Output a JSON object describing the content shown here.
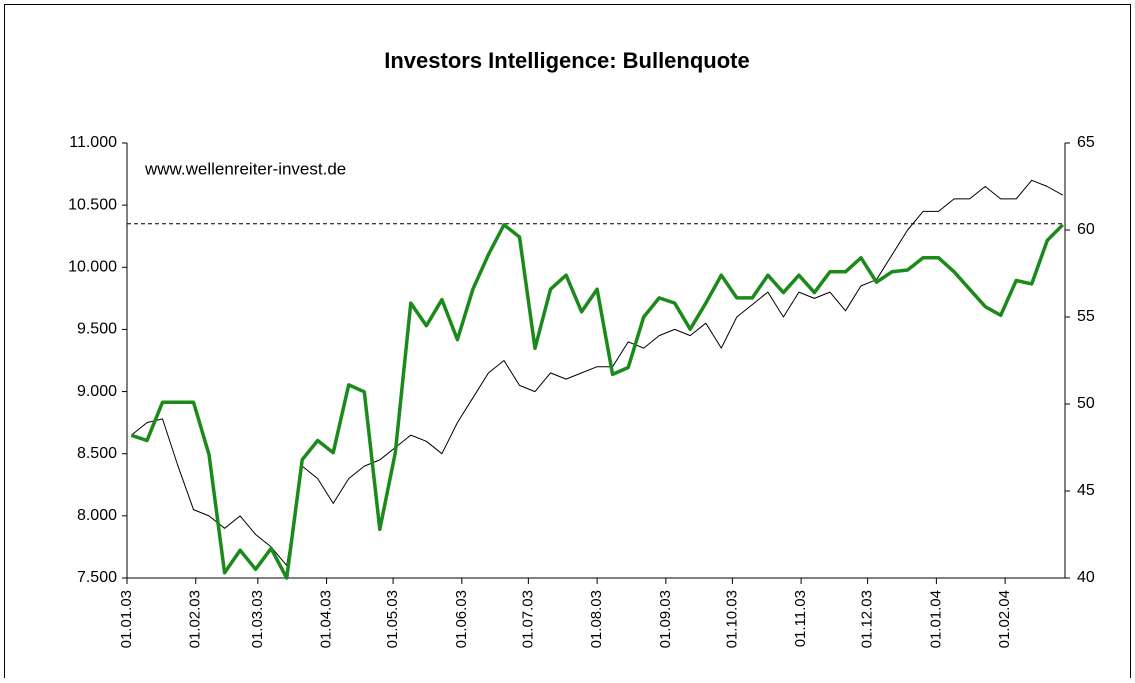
{
  "chart_data": {
    "type": "line",
    "title": "Investors Intelligence: Bullenquote",
    "annotation": "www.wellenreiter-invest.de",
    "x": [
      "03.01.03",
      "10.01.03",
      "17.01.03",
      "24.01.03",
      "31.01.03",
      "07.02.03",
      "14.02.03",
      "21.02.03",
      "28.02.03",
      "07.03.03",
      "14.03.03",
      "21.03.03",
      "28.03.03",
      "04.04.03",
      "11.04.03",
      "18.04.03",
      "25.04.03",
      "02.05.03",
      "09.05.03",
      "16.05.03",
      "23.05.03",
      "30.05.03",
      "06.06.03",
      "13.06.03",
      "20.06.03",
      "27.06.03",
      "04.07.03",
      "11.07.03",
      "18.07.03",
      "25.07.03",
      "01.08.03",
      "08.08.03",
      "15.08.03",
      "22.08.03",
      "29.08.03",
      "05.09.03",
      "12.09.03",
      "19.09.03",
      "26.09.03",
      "03.10.03",
      "10.10.03",
      "17.10.03",
      "24.10.03",
      "31.10.03",
      "07.11.03",
      "14.11.03",
      "21.11.03",
      "28.11.03",
      "05.12.03",
      "12.12.03",
      "19.12.03",
      "26.12.03",
      "02.01.04",
      "09.01.04",
      "16.01.04",
      "23.01.04",
      "30.01.04",
      "06.02.04",
      "13.02.04",
      "20.02.04",
      "27.02.04"
    ],
    "series": [
      {
        "color": "#000000",
        "width": 1,
        "axis": "y",
        "values": [
          8650,
          8750,
          8780,
          8400,
          8050,
          8000,
          7900,
          8000,
          7850,
          7750,
          7600,
          8400,
          8300,
          8100,
          8300,
          8400,
          8450,
          8550,
          8650,
          8600,
          8500,
          8750,
          8950,
          9150,
          9250,
          9050,
          9000,
          9150,
          9100,
          9150,
          9200,
          9200,
          9400,
          9350,
          9450,
          9500,
          9450,
          9550,
          9350,
          9600,
          9700,
          9800,
          9600,
          9800,
          9750,
          9800,
          9650,
          9850,
          9900,
          10100,
          10300,
          10450,
          10450,
          10550,
          10550,
          10650,
          10550,
          10550,
          10700,
          10650,
          10580
        ]
      },
      {
        "color": "#1a8a1a",
        "width": 3.5,
        "axis": "y2",
        "values": [
          48.2,
          47.9,
          50.1,
          50.1,
          50.1,
          47.1,
          40.3,
          41.6,
          40.5,
          41.7,
          40.0,
          46.8,
          47.9,
          47.2,
          51.1,
          50.7,
          42.8,
          47.2,
          55.8,
          54.5,
          56.0,
          53.7,
          56.6,
          58.6,
          60.3,
          59.6,
          53.2,
          56.6,
          57.4,
          55.3,
          56.6,
          51.7,
          52.1,
          55.0,
          56.1,
          55.8,
          54.3,
          55.8,
          57.4,
          56.1,
          56.1,
          57.4,
          56.4,
          57.4,
          56.4,
          57.6,
          57.6,
          58.4,
          57.0,
          57.6,
          57.7,
          58.4,
          58.4,
          57.6,
          56.6,
          55.6,
          55.1,
          57.1,
          56.9,
          59.4,
          60.3
        ]
      }
    ],
    "xlim": [
      "01.01.03",
      "28.02.04"
    ],
    "xticks": [
      "01.01.03",
      "01.02.03",
      "01.03.03",
      "01.04.03",
      "01.05.03",
      "01.06.03",
      "01.07.03",
      "01.08.03",
      "01.09.03",
      "01.10.03",
      "01.11.03",
      "01.12.03",
      "01.01.04",
      "01.02.04"
    ],
    "ylim": [
      7500,
      11000
    ],
    "yticks": [
      {
        "value": 7500,
        "label": "7.500"
      },
      {
        "value": 8000,
        "label": "8.000"
      },
      {
        "value": 8500,
        "label": "8.500"
      },
      {
        "value": 9000,
        "label": "9.000"
      },
      {
        "value": 9500,
        "label": "9.500"
      },
      {
        "value": 10000,
        "label": "10.000"
      },
      {
        "value": 10500,
        "label": "10.500"
      },
      {
        "value": 11000,
        "label": "11.000"
      }
    ],
    "y2lim": [
      40,
      65
    ],
    "y2ticks": [
      40,
      45,
      50,
      55,
      60,
      65
    ],
    "reference_line": {
      "value": 10350,
      "axis": "y",
      "style": "dashed"
    },
    "grid": false
  }
}
